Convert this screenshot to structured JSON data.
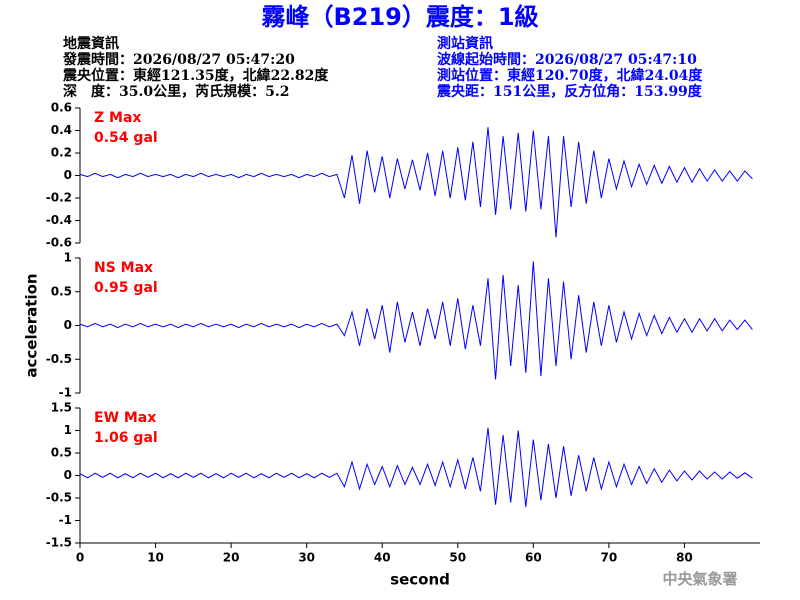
{
  "header": {
    "title": "霧峰（B219）震度：1級",
    "left": [
      "地震資訊",
      "發震時間：2026/08/27 05:47:20",
      "震央位置：東經121.35度，北緯22.82度",
      "深　度：35.0公里，芮氏規模：5.2"
    ],
    "right": [
      "測站資訊",
      "波線起始時間：2026/08/27 05:47:10",
      "測站位置：東經120.70度，北緯24.04度",
      "震央距：151公里，反方位角：153.99度"
    ]
  },
  "footer": "中央氣象署",
  "chart_data": [
    {
      "type": "line",
      "annotations": [
        "Z Max",
        "0.54 gal"
      ],
      "color": "#0000ff",
      "annotation_color": "#ff0000",
      "xlim": [
        0,
        90
      ],
      "ylim": [
        -0.6,
        0.6
      ],
      "yticks": [
        -0.6,
        -0.4,
        -0.2,
        0,
        0.2,
        0.4,
        0.6
      ],
      "x": [
        0,
        1,
        2,
        3,
        4,
        5,
        6,
        7,
        8,
        9,
        10,
        11,
        12,
        13,
        14,
        15,
        16,
        17,
        18,
        19,
        20,
        21,
        22,
        23,
        24,
        25,
        26,
        27,
        28,
        29,
        30,
        31,
        32,
        33,
        34,
        35,
        36,
        37,
        38,
        39,
        40,
        41,
        42,
        43,
        44,
        45,
        46,
        47,
        48,
        49,
        50,
        51,
        52,
        53,
        54,
        55,
        56,
        57,
        58,
        59,
        60,
        61,
        62,
        63,
        64,
        65,
        66,
        67,
        68,
        69,
        70,
        71,
        72,
        73,
        74,
        75,
        76,
        77,
        78,
        79,
        80,
        81,
        82,
        83,
        84,
        85,
        86,
        87,
        88,
        89
      ],
      "values": [
        0.01,
        -0.01,
        0.02,
        -0.01,
        0.01,
        -0.02,
        0.01,
        -0.01,
        0.02,
        -0.01,
        0.01,
        -0.01,
        0.01,
        -0.02,
        0.01,
        -0.01,
        0.02,
        -0.01,
        0.01,
        -0.01,
        0.01,
        -0.02,
        0.01,
        -0.01,
        0.02,
        -0.01,
        0.01,
        -0.01,
        0.01,
        -0.02,
        0.01,
        -0.01,
        0.02,
        -0.01,
        0.01,
        -0.2,
        0.18,
        -0.25,
        0.22,
        -0.15,
        0.17,
        -0.2,
        0.15,
        -0.12,
        0.14,
        -0.13,
        0.2,
        -0.18,
        0.22,
        -0.2,
        0.25,
        -0.22,
        0.3,
        -0.28,
        0.43,
        -0.35,
        0.35,
        -0.3,
        0.38,
        -0.32,
        0.4,
        -0.3,
        0.35,
        -0.55,
        0.35,
        -0.28,
        0.3,
        -0.25,
        0.22,
        -0.2,
        0.15,
        -0.12,
        0.13,
        -0.1,
        0.1,
        -0.08,
        0.09,
        -0.07,
        0.08,
        -0.06,
        0.07,
        -0.06,
        0.06,
        -0.05,
        0.05,
        -0.05,
        0.04,
        -0.05,
        0.04,
        -0.03
      ]
    },
    {
      "type": "line",
      "annotations": [
        "NS Max",
        "0.95 gal"
      ],
      "color": "#0000ff",
      "annotation_color": "#ff0000",
      "ylabel": "acceleration",
      "xlim": [
        0,
        90
      ],
      "ylim": [
        -1,
        1
      ],
      "yticks": [
        -1,
        -0.5,
        0,
        0.5,
        1
      ],
      "x": [
        0,
        1,
        2,
        3,
        4,
        5,
        6,
        7,
        8,
        9,
        10,
        11,
        12,
        13,
        14,
        15,
        16,
        17,
        18,
        19,
        20,
        21,
        22,
        23,
        24,
        25,
        26,
        27,
        28,
        29,
        30,
        31,
        32,
        33,
        34,
        35,
        36,
        37,
        38,
        39,
        40,
        41,
        42,
        43,
        44,
        45,
        46,
        47,
        48,
        49,
        50,
        51,
        52,
        53,
        54,
        55,
        56,
        57,
        58,
        59,
        60,
        61,
        62,
        63,
        64,
        65,
        66,
        67,
        68,
        69,
        70,
        71,
        72,
        73,
        74,
        75,
        76,
        77,
        78,
        79,
        80,
        81,
        82,
        83,
        84,
        85,
        86,
        87,
        88,
        89
      ],
      "values": [
        0.02,
        -0.02,
        0.03,
        -0.02,
        0.02,
        -0.03,
        0.02,
        -0.02,
        0.03,
        -0.02,
        0.02,
        -0.02,
        0.02,
        -0.03,
        0.02,
        -0.02,
        0.03,
        -0.02,
        0.02,
        -0.02,
        0.02,
        -0.03,
        0.02,
        -0.02,
        0.03,
        -0.02,
        0.02,
        -0.02,
        0.02,
        -0.03,
        0.02,
        -0.02,
        0.03,
        -0.02,
        0.02,
        -0.15,
        0.2,
        -0.3,
        0.25,
        -0.2,
        0.3,
        -0.4,
        0.35,
        -0.25,
        0.2,
        -0.3,
        0.25,
        -0.2,
        0.35,
        -0.3,
        0.4,
        -0.35,
        0.3,
        -0.3,
        0.7,
        -0.8,
        0.75,
        -0.6,
        0.6,
        -0.7,
        0.95,
        -0.75,
        0.7,
        -0.6,
        0.65,
        -0.5,
        0.45,
        -0.4,
        0.35,
        -0.3,
        0.3,
        -0.25,
        0.2,
        -0.2,
        0.18,
        -0.15,
        0.15,
        -0.12,
        0.12,
        -0.1,
        0.1,
        -0.1,
        0.1,
        -0.08,
        0.1,
        -0.08,
        0.08,
        -0.06,
        0.08,
        -0.06
      ]
    },
    {
      "type": "line",
      "annotations": [
        "EW Max",
        "1.06 gal"
      ],
      "color": "#0000ff",
      "annotation_color": "#ff0000",
      "xlabel": "second",
      "xlim": [
        0,
        90
      ],
      "ylim": [
        -1.5,
        1.5
      ],
      "yticks": [
        -1.5,
        -1,
        -0.5,
        0,
        0.5,
        1,
        1.5
      ],
      "xticks": [
        0,
        10,
        20,
        30,
        40,
        50,
        60,
        70,
        80
      ],
      "x": [
        0,
        1,
        2,
        3,
        4,
        5,
        6,
        7,
        8,
        9,
        10,
        11,
        12,
        13,
        14,
        15,
        16,
        17,
        18,
        19,
        20,
        21,
        22,
        23,
        24,
        25,
        26,
        27,
        28,
        29,
        30,
        31,
        32,
        33,
        34,
        35,
        36,
        37,
        38,
        39,
        40,
        41,
        42,
        43,
        44,
        45,
        46,
        47,
        48,
        49,
        50,
        51,
        52,
        53,
        54,
        55,
        56,
        57,
        58,
        59,
        60,
        61,
        62,
        63,
        64,
        65,
        66,
        67,
        68,
        69,
        70,
        71,
        72,
        73,
        74,
        75,
        76,
        77,
        78,
        79,
        80,
        81,
        82,
        83,
        84,
        85,
        86,
        87,
        88,
        89
      ],
      "values": [
        0.04,
        -0.05,
        0.05,
        -0.04,
        0.05,
        -0.05,
        0.04,
        -0.05,
        0.05,
        -0.04,
        0.05,
        -0.05,
        0.04,
        -0.05,
        0.05,
        -0.04,
        0.05,
        -0.05,
        0.04,
        -0.05,
        0.05,
        -0.04,
        0.05,
        -0.05,
        0.04,
        -0.05,
        0.05,
        -0.04,
        0.05,
        -0.05,
        0.04,
        -0.05,
        0.05,
        -0.04,
        0.05,
        -0.25,
        0.3,
        -0.3,
        0.25,
        -0.2,
        0.2,
        -0.25,
        0.22,
        -0.2,
        0.18,
        -0.2,
        0.25,
        -0.22,
        0.3,
        -0.25,
        0.35,
        -0.3,
        0.4,
        -0.35,
        1.06,
        -0.65,
        0.9,
        -0.6,
        1.0,
        -0.7,
        0.8,
        -0.55,
        0.7,
        -0.5,
        0.65,
        -0.45,
        0.45,
        -0.35,
        0.4,
        -0.3,
        0.3,
        -0.25,
        0.25,
        -0.2,
        0.2,
        -0.18,
        0.15,
        -0.15,
        0.12,
        -0.12,
        0.1,
        -0.1,
        0.1,
        -0.08,
        0.08,
        -0.08,
        0.08,
        -0.06,
        0.06,
        -0.06
      ]
    }
  ]
}
